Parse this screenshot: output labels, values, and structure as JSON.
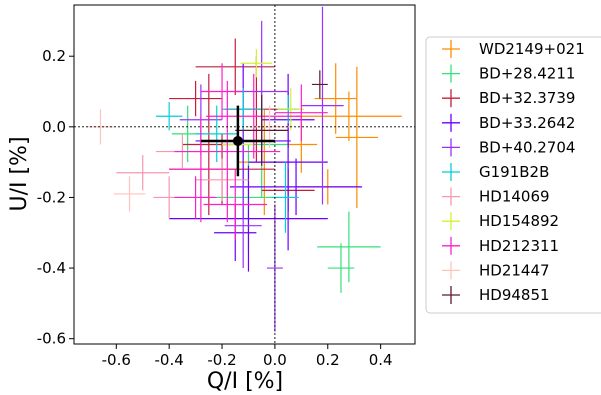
{
  "chart_data": {
    "type": "scatter",
    "title": "",
    "xlabel": "Q/I [%]",
    "ylabel": "U/I [%]",
    "xlim": [
      -0.76,
      0.53
    ],
    "ylim": [
      -0.615,
      0.345
    ],
    "xticks": [
      -0.6,
      -0.4,
      -0.2,
      0.0,
      0.2,
      0.4
    ],
    "xtick_labels": [
      "-0.6",
      "-0.4",
      "-0.2",
      "0.0",
      "0.2",
      "0.4"
    ],
    "yticks": [
      -0.6,
      -0.4,
      -0.2,
      0.0,
      0.2
    ],
    "ytick_labels": [
      "-0.6",
      "-0.4",
      "-0.2",
      "0.0",
      "0.2"
    ],
    "reference_lines": {
      "x": 0.0,
      "y": 0.0,
      "style": "dotted"
    },
    "grid": false,
    "legend_position": "right, outside plot",
    "marker": "error-bar cross",
    "series": [
      {
        "name": "WD2149+021",
        "color": "#ff8c00",
        "points": [
          {
            "q": 0.28,
            "u": 0.03,
            "qe": 0.2,
            "ue": 0.07
          },
          {
            "q": 0.31,
            "u": -0.03,
            "qe": 0.08,
            "ue": 0.2
          },
          {
            "q": 0.2,
            "u": -0.17,
            "qe": 0.12,
            "ue": 0.05
          },
          {
            "q": 0.23,
            "u": 0.08,
            "qe": 0.08,
            "ue": 0.1
          },
          {
            "q": -0.04,
            "u": -0.1,
            "qe": 0.1,
            "ue": 0.15
          },
          {
            "q": 0.1,
            "u": -0.05,
            "qe": 0.06,
            "ue": 0.08
          }
        ]
      },
      {
        "name": "BD+28.4211",
        "color": "#33e07a",
        "points": [
          {
            "q": 0.28,
            "u": -0.34,
            "qe": 0.12,
            "ue": 0.1
          },
          {
            "q": 0.25,
            "u": -0.4,
            "qe": 0.05,
            "ue": 0.07
          },
          {
            "q": -0.05,
            "u": -0.05,
            "qe": 0.1,
            "ue": 0.15
          },
          {
            "q": -0.33,
            "u": -0.02,
            "qe": 0.06,
            "ue": 0.08
          },
          {
            "q": -0.1,
            "u": -0.2,
            "qe": 0.12,
            "ue": 0.15
          }
        ]
      },
      {
        "name": "BD+32.3739",
        "color": "#c41e3a",
        "points": [
          {
            "q": -0.15,
            "u": 0.17,
            "qe": 0.15,
            "ue": 0.08
          },
          {
            "q": -0.2,
            "u": -0.12,
            "qe": 0.2,
            "ue": 0.1
          },
          {
            "q": 0.05,
            "u": -0.18,
            "qe": 0.1,
            "ue": 0.06
          },
          {
            "q": -0.07,
            "u": 0.05,
            "qe": 0.12,
            "ue": 0.15
          },
          {
            "q": -0.25,
            "u": -0.05,
            "qe": 0.1,
            "ue": 0.2
          },
          {
            "q": -0.3,
            "u": 0.08,
            "qe": 0.1,
            "ue": 0.05
          }
        ]
      },
      {
        "name": "BD+33.2642",
        "color": "#6a00ff",
        "points": [
          {
            "q": -0.1,
            "u": -0.26,
            "qe": 0.3,
            "ue": 0.15
          },
          {
            "q": 0.05,
            "u": -0.1,
            "qe": 0.15,
            "ue": 0.25
          },
          {
            "q": 0.08,
            "u": -0.17,
            "qe": 0.25,
            "ue": 0.08
          },
          {
            "q": -0.12,
            "u": -0.04,
            "qe": 0.18,
            "ue": 0.22
          },
          {
            "q": -0.15,
            "u": -0.3,
            "qe": 0.08,
            "ue": 0.08
          },
          {
            "q": 0.05,
            "u": 0.02,
            "qe": 0.1,
            "ue": 0.08
          }
        ]
      },
      {
        "name": "BD+40.2704",
        "color": "#9b30ff",
        "points": [
          {
            "q": 0.18,
            "u": 0.06,
            "qe": 0.08,
            "ue": 0.28
          },
          {
            "q": 0.0,
            "u": -0.4,
            "qe": 0.03,
            "ue": 0.18
          },
          {
            "q": -0.28,
            "u": 0.02,
            "qe": 0.08,
            "ue": 0.1
          },
          {
            "q": -0.12,
            "u": -0.28,
            "qe": 0.07,
            "ue": 0.12
          },
          {
            "q": -0.05,
            "u": 0.1,
            "qe": 0.1,
            "ue": 0.2
          }
        ]
      },
      {
        "name": "G191B2B",
        "color": "#00cfd8",
        "points": [
          {
            "q": -0.22,
            "u": -0.02,
            "qe": 0.08,
            "ue": 0.08
          },
          {
            "q": -0.4,
            "u": 0.03,
            "qe": 0.05,
            "ue": 0.04
          },
          {
            "q": 0.04,
            "u": -0.2,
            "qe": 0.05,
            "ue": 0.1
          },
          {
            "q": -0.12,
            "u": 0.05,
            "qe": 0.08,
            "ue": 0.06
          },
          {
            "q": 0.05,
            "u": 0.05,
            "qe": 0.04,
            "ue": 0.04
          }
        ]
      },
      {
        "name": "HD14069",
        "color": "#f598b0",
        "points": [
          {
            "q": -0.5,
            "u": -0.13,
            "qe": 0.1,
            "ue": 0.05
          },
          {
            "q": -0.35,
            "u": -0.07,
            "qe": 0.1,
            "ue": 0.05
          },
          {
            "q": -0.2,
            "u": -0.15,
            "qe": 0.1,
            "ue": 0.06
          },
          {
            "q": -0.4,
            "u": -0.2,
            "qe": 0.06,
            "ue": 0.06
          }
        ]
      },
      {
        "name": "HD154892",
        "color": "#d4f034",
        "points": [
          {
            "q": -0.07,
            "u": 0.18,
            "qe": 0.06,
            "ue": 0.04
          },
          {
            "q": 0.06,
            "u": 0.05,
            "qe": 0.05,
            "ue": 0.06
          },
          {
            "q": -0.14,
            "u": -0.05,
            "qe": 0.06,
            "ue": 0.05
          }
        ]
      },
      {
        "name": "HD212311",
        "color": "#ff1fc8",
        "points": [
          {
            "q": -0.18,
            "u": -0.07,
            "qe": 0.2,
            "ue": 0.2
          },
          {
            "q": -0.08,
            "u": 0.03,
            "qe": 0.18,
            "ue": 0.12
          },
          {
            "q": -0.28,
            "u": -0.12,
            "qe": 0.12,
            "ue": 0.15
          },
          {
            "q": 0.1,
            "u": 0.04,
            "qe": 0.1,
            "ue": 0.08
          },
          {
            "q": -0.15,
            "u": -0.22,
            "qe": 0.12,
            "ue": 0.1
          },
          {
            "q": -0.2,
            "u": 0.1,
            "qe": 0.08,
            "ue": 0.08
          },
          {
            "q": -0.3,
            "u": -0.2,
            "qe": 0.08,
            "ue": 0.06
          }
        ]
      },
      {
        "name": "HD21447",
        "color": "#ffc4bc",
        "points": [
          {
            "q": -0.66,
            "u": 0.0,
            "qe": 0.05,
            "ue": 0.05
          },
          {
            "q": -0.55,
            "u": -0.19,
            "qe": 0.06,
            "ue": 0.05
          },
          {
            "q": -0.02,
            "u": 0.0,
            "qe": 0.08,
            "ue": 0.06
          }
        ]
      },
      {
        "name": "HD94851",
        "color": "#5c1a2c",
        "points": [
          {
            "q": 0.17,
            "u": 0.12,
            "qe": 0.03,
            "ue": 0.04
          },
          {
            "q": -0.05,
            "u": -0.01,
            "qe": 0.1,
            "ue": 0.1
          }
        ]
      }
    ],
    "highlight_point": {
      "q": -0.14,
      "u": -0.04,
      "qe": 0.14,
      "ue": 0.1,
      "color": "#000000"
    }
  }
}
